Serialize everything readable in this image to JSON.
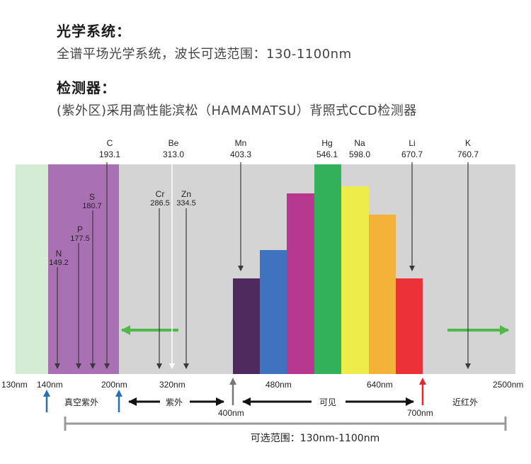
{
  "optics": {
    "title": "光学系统：",
    "description": "全谱平场光学系统，波长可选范围：130-1100nm"
  },
  "detector": {
    "title": "检测器：",
    "description": "(紫外区)采用高性能滨松（HAMAMATSU）背照式CCD检测器"
  },
  "colors": {
    "vuv_green": "#d4ecd4",
    "vuv_purple": "#aa70b4",
    "gray": "#d4d4d4",
    "bar_darkpurple": "#4e2a5e",
    "bar_blue": "#3f72bf",
    "bar_magenta": "#b6398f",
    "bar_green": "#33b05a",
    "bar_yellow": "#ecec4a",
    "bar_orange": "#f4b23a",
    "bar_red": "#ec3238",
    "arrow_green": "#50b848"
  },
  "top_elements": [
    {
      "name": "C",
      "value": "193.1"
    },
    {
      "name": "Be",
      "value": "313.0"
    },
    {
      "name": "Mn",
      "value": "403.3"
    },
    {
      "name": "Hg",
      "value": "546.1"
    },
    {
      "name": "Na",
      "value": "598.0"
    },
    {
      "name": "Li",
      "value": "670.7"
    },
    {
      "name": "K",
      "value": "760.7"
    }
  ],
  "inner_elements": [
    {
      "name": "S",
      "value": "180.7"
    },
    {
      "name": "P",
      "value": "177.5"
    },
    {
      "name": "N",
      "value": "149.2"
    },
    {
      "name": "Cr",
      "value": "286.5"
    },
    {
      "name": "Zn",
      "value": "334.5"
    }
  ],
  "ticks": [
    "130nm",
    "140nm",
    "200nm",
    "320nm",
    "400nm",
    "480nm",
    "640nm",
    "700nm",
    "2500nm"
  ],
  "regions": {
    "vacuum_uv": "真空紫外",
    "uv": "紫外",
    "visible": "可见",
    "near_ir": "近红外"
  },
  "range_label": "可选范围：130nm-1100nm"
}
